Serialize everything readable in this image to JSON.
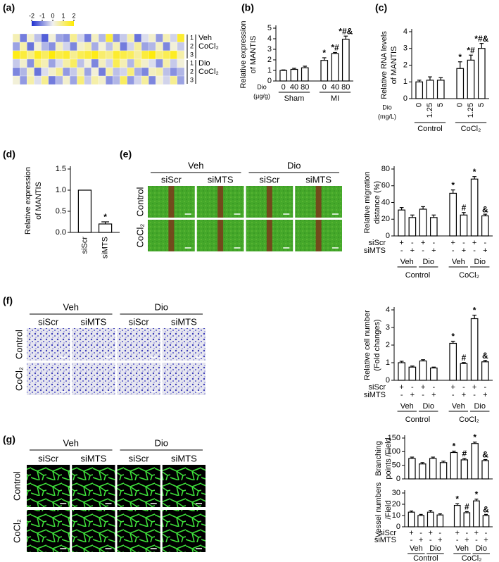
{
  "panel_labels": [
    "(a)",
    "(b)",
    "(c)",
    "(d)",
    "(e)",
    "(f)",
    "(g)"
  ],
  "chart_data": [
    {
      "type": "heatmap",
      "colorbar_ticks": [
        -2,
        -1,
        0,
        1,
        2
      ],
      "zlim": [
        -2,
        2
      ],
      "colormap": [
        "#1f2fd0",
        "#f0f0f0",
        "#ffeb00"
      ],
      "row_labels": [
        "1",
        "2",
        "3",
        "1",
        "2",
        "3"
      ],
      "row_groups": [
        [
          "Veh",
          "CoCl₂"
        ],
        [
          "Dio",
          "CoCl₂"
        ]
      ],
      "values": [
        [
          0.5,
          -1.2,
          0.3,
          -0.5,
          -1.5,
          0.2,
          -0.8,
          -1.0,
          0.8,
          -0.3,
          -1.2,
          0.4,
          -0.6,
          1.5,
          -1.0,
          -0.4,
          0.6,
          -1.3,
          -0.2,
          0.3,
          -0.9,
          0.5,
          -0.3,
          1.6
        ],
        [
          -0.8,
          0.6,
          -1.3,
          0.2,
          -0.6,
          -1.0,
          0.4,
          -0.3,
          -1.1,
          0.3,
          0.6,
          -0.7,
          0.2,
          -0.5,
          0.5,
          -1.2,
          -0.3,
          0.7,
          -0.8,
          -0.6,
          0.4,
          -1.1,
          0.2,
          -0.4
        ],
        [
          1.8,
          1.5,
          0.9,
          1.7,
          1.2,
          1.9,
          1.4,
          1.6,
          0.8,
          1.3,
          1.5,
          1.8,
          1.1,
          0.9,
          1.6,
          1.4,
          1.2,
          0.7,
          1.5,
          1.9,
          1.0,
          1.3,
          1.7,
          0.6
        ],
        [
          -0.4,
          0.3,
          -1.0,
          0.9,
          0.5,
          -0.8,
          -0.2,
          0.6,
          1.2,
          -0.5,
          0.2,
          -1.1,
          0.4,
          -0.3,
          1.3,
          0.5,
          -0.6,
          0.8,
          0.3,
          -0.2,
          -1.0,
          0.6,
          -0.4,
          0.2
        ],
        [
          -1.1,
          -0.6,
          0.4,
          -1.3,
          -0.2,
          0.3,
          0.8,
          -0.9,
          -0.4,
          0.5,
          -0.8,
          0.2,
          -1.2,
          0.6,
          -0.5,
          -0.3,
          1.0,
          -0.7,
          -1.1,
          0.4,
          0.6,
          -0.5,
          -1.0,
          -0.6
        ],
        [
          0.2,
          -0.9,
          0.6,
          -0.2,
          0.8,
          -1.2,
          -0.6,
          0.3,
          -0.8,
          1.0,
          -0.4,
          0.6,
          0.3,
          -1.0,
          -0.6,
          1.2,
          -0.9,
          -0.3,
          0.7,
          -1.1,
          0.2,
          -0.3,
          0.8,
          -0.8
        ]
      ]
    },
    {
      "type": "bar",
      "ylabel": [
        "Relative expression",
        "of MANTIS"
      ],
      "xlabel": [
        "Dio",
        "(μg/g)"
      ],
      "categories": [
        "0",
        "40",
        "80",
        "0",
        "40",
        "80"
      ],
      "groups": [
        "Sham",
        "MI"
      ],
      "values": [
        1.0,
        1.1,
        1.25,
        1.95,
        2.6,
        3.95
      ],
      "errors": [
        0.05,
        0.1,
        0.15,
        0.25,
        0.1,
        0.3
      ],
      "annotations": [
        null,
        null,
        null,
        "*",
        "*#",
        "*#&"
      ],
      "color": "#ffffff",
      "ylim": [
        0,
        5
      ],
      "yticks": [
        0,
        1,
        2,
        3,
        4,
        5
      ]
    },
    {
      "type": "bar",
      "ylabel": [
        "Relative RNA levels",
        "of MANTIS"
      ],
      "xlabel": [
        "Dio",
        "(mg/L)"
      ],
      "categories": [
        "0",
        "1.25",
        "5",
        "0",
        "1.25",
        "5"
      ],
      "groups": [
        "Control",
        "CoCl₂"
      ],
      "values": [
        1.0,
        1.1,
        1.1,
        1.8,
        2.3,
        3.0
      ],
      "errors": [
        0.1,
        0.2,
        0.15,
        0.4,
        0.3,
        0.3
      ],
      "annotations": [
        null,
        null,
        null,
        "*",
        "*#",
        "*#&"
      ],
      "color": "#ffffff",
      "ylim": [
        0,
        4
      ],
      "yticks": [
        0,
        1,
        2,
        3,
        4
      ]
    },
    {
      "type": "bar",
      "ylabel": [
        "Relative expression",
        "of MANTIS"
      ],
      "categories": [
        "siScr",
        "siMTS"
      ],
      "values": [
        1.0,
        0.2
      ],
      "errors": [
        null,
        0.05
      ],
      "annotations": [
        null,
        "*"
      ],
      "color": "#ffffff",
      "ylim": [
        0,
        1.5
      ],
      "yticks": [
        {
          "value": 0,
          "label": "0.0"
        },
        {
          "value": 0.5,
          "label": "0.5"
        },
        {
          "value": 1,
          "label": "1.0"
        },
        {
          "value": 1.5,
          "label": "1.5"
        }
      ]
    },
    {
      "type": "bar",
      "ylabel": [
        "Relative migration",
        "distance (%)"
      ],
      "sign_rows": [
        {
          "name": "siScr",
          "signs": [
            "+",
            "-",
            "+",
            "-",
            "+",
            "-",
            "+",
            "-"
          ]
        },
        {
          "name": "siMTS",
          "signs": [
            "-",
            "+",
            "-",
            "+",
            "-",
            "+",
            "-",
            "+"
          ]
        }
      ],
      "subgroups": [
        "Veh",
        "Dio",
        "Veh",
        "Dio"
      ],
      "groups": [
        "Control",
        "CoCl₂"
      ],
      "values": [
        31,
        22,
        32,
        22,
        51,
        25,
        68,
        24
      ],
      "errors": [
        3,
        3,
        3,
        3,
        4,
        3,
        3,
        2
      ],
      "annotations": [
        null,
        null,
        null,
        null,
        "*",
        "#",
        "*",
        "&"
      ],
      "color": "#ffffff",
      "ylim": [
        0,
        80
      ],
      "yticks": [
        0,
        20,
        40,
        60,
        80
      ]
    },
    {
      "type": "bar",
      "ylabel": [
        "Relative cell number",
        "(Fold changes)"
      ],
      "sign_rows": [
        {
          "name": "siScr",
          "signs": [
            "+",
            "-",
            "+",
            "-",
            "+",
            "-",
            "+",
            "-"
          ]
        },
        {
          "name": "siMTS",
          "signs": [
            "-",
            "+",
            "-",
            "+",
            "-",
            "+",
            "-",
            "+"
          ]
        }
      ],
      "subgroups": [
        "Veh",
        "Dio",
        "Veh",
        "Dio"
      ],
      "groups": [
        "Control",
        "CoCl₂"
      ],
      "values": [
        1.0,
        0.75,
        1.1,
        0.7,
        2.1,
        0.95,
        3.5,
        1.05
      ],
      "errors": [
        0.08,
        0.06,
        0.07,
        0.05,
        0.12,
        0.06,
        0.2,
        0.08
      ],
      "annotations": [
        null,
        null,
        null,
        null,
        "*",
        "#",
        "*",
        "&"
      ],
      "color": "#ffffff",
      "ylim": [
        0,
        4
      ],
      "yticks": [
        0,
        1,
        2,
        3,
        4
      ]
    },
    {
      "type": "bar",
      "ylabel": [
        "Branching",
        "points /Field"
      ],
      "values": [
        75,
        55,
        75,
        60,
        97,
        70,
        130,
        67
      ],
      "errors": [
        5,
        5,
        5,
        5,
        5,
        5,
        5,
        4
      ],
      "annotations": [
        null,
        null,
        null,
        null,
        "*",
        "#",
        "*",
        "&"
      ],
      "color": "#ffffff",
      "ylim": [
        0,
        150
      ],
      "yticks": [
        0,
        50,
        100,
        150
      ]
    },
    {
      "type": "bar",
      "ylabel": [
        "Vessel numbers",
        "/Field"
      ],
      "sign_rows": [
        {
          "name": "siScr",
          "signs": [
            "+",
            "-",
            "+",
            "-",
            "+",
            "-",
            "+",
            "-"
          ]
        },
        {
          "name": "siMTS",
          "signs": [
            "-",
            "+",
            "-",
            "+",
            "-",
            "+",
            "-",
            "+"
          ]
        }
      ],
      "subgroups": [
        "Veh",
        "Dio",
        "Veh",
        "Dio"
      ],
      "groups": [
        "Control",
        "CoCl₂"
      ],
      "values": [
        13,
        10,
        13,
        10.5,
        19,
        12.5,
        23,
        10
      ],
      "errors": [
        1,
        1,
        1.5,
        1,
        1.5,
        1,
        1.5,
        1
      ],
      "annotations": [
        null,
        null,
        null,
        null,
        "*",
        "#",
        "*",
        "&"
      ],
      "color": "#ffffff",
      "ylim": [
        0,
        30
      ],
      "yticks": [
        0,
        10,
        20,
        30
      ]
    }
  ],
  "image_panels": [
    {
      "columns": [
        "Veh",
        "Dio"
      ],
      "subcolumns": [
        "siScr",
        "siMTS",
        "siScr",
        "siMTS"
      ],
      "rows": [
        "Control",
        "CoCl₂"
      ]
    },
    {
      "columns": [
        "Veh",
        "Dio"
      ],
      "subcolumns": [
        "siScr",
        "siMTS",
        "siScr",
        "siMTS"
      ],
      "rows": [
        "Control",
        "CoCl₂"
      ]
    },
    {
      "columns": [
        "Veh",
        "Dio"
      ],
      "subcolumns": [
        "siScr",
        "siMTS",
        "siScr",
        "siMTS"
      ],
      "rows": [
        "Control",
        "CoCl₂"
      ]
    }
  ]
}
